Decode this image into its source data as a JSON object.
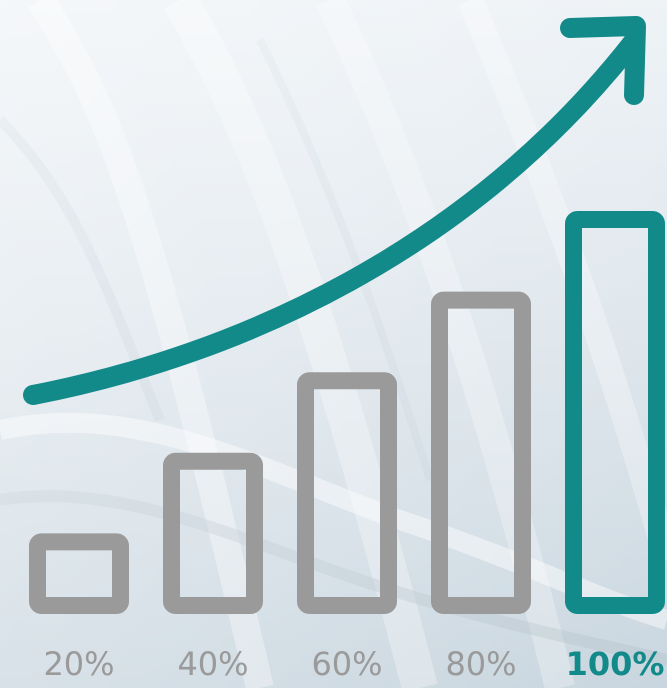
{
  "chart_data": {
    "type": "bar",
    "categories": [
      "20%",
      "40%",
      "60%",
      "80%",
      "100%"
    ],
    "values": [
      20,
      40,
      60,
      80,
      100
    ],
    "highlight_index": 4,
    "title": "",
    "xlabel": "",
    "ylabel": "",
    "ylim": [
      0,
      100
    ],
    "grid": false,
    "legend": "none",
    "trend_arrow": "up"
  },
  "colors": {
    "bar_default": "#9a9a9a",
    "bar_highlight": "#138a8a",
    "arrow": "#138a8a",
    "label_default": "#9a9a9a",
    "label_highlight": "#138a8a",
    "background_top": "#e8eef3",
    "background_bottom": "#c9d6df"
  }
}
